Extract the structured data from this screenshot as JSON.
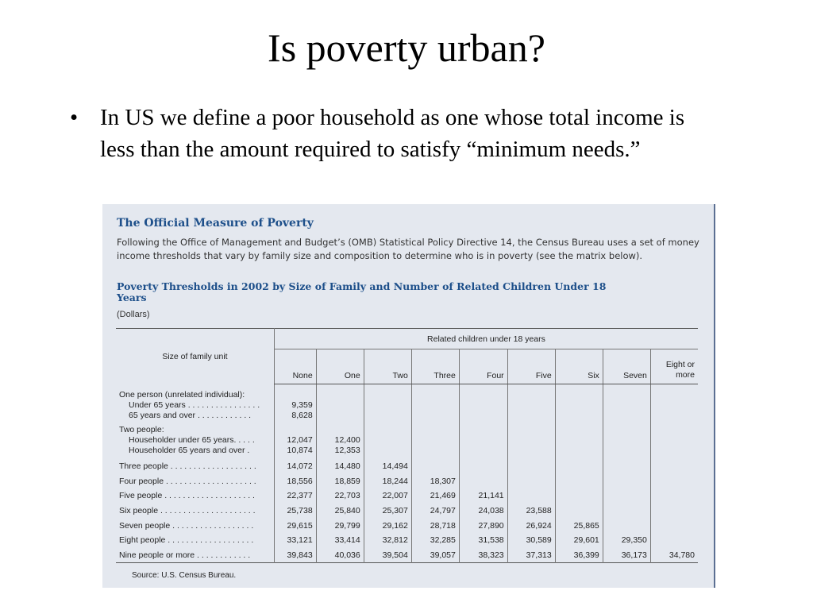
{
  "slide": {
    "title": "Is poverty urban?",
    "bullet_symbol": "•",
    "bullet_text": "In US we define a poor household as one whose total income is less than the amount  required to satisfy “minimum needs.”"
  },
  "panel": {
    "title": "The Official Measure of Poverty",
    "description": "Following the Office of Management and Budget’s (OMB) Statistical Policy Directive 14, the Census Bureau uses a set of money income thresholds that vary by family size and composition to determine who is in poverty (see the matrix below).",
    "table_title": "Poverty Thresholds in 2002 by Size of Family and Number of Related Children Under 18 Years",
    "units": "(Dollars)",
    "size_header": "Size of family unit",
    "group_header": "Related children under 18 years",
    "columns": [
      "None",
      "One",
      "Two",
      "Three",
      "Four",
      "Five",
      "Six",
      "Seven",
      "Eight or more"
    ],
    "rows": [
      {
        "label": "One person (unrelated individual):",
        "values": []
      },
      {
        "label": "Under 65 years . . . . . . . . . . . . . . . .",
        "values": [
          "9,359"
        ]
      },
      {
        "label": "65 years and over  . . . . . . . . . . . .",
        "values": [
          "8,628"
        ]
      },
      {
        "label": "Two people:",
        "values": []
      },
      {
        "label": "Householder under 65 years. . . . .",
        "values": [
          "12,047",
          "12,400"
        ]
      },
      {
        "label": "Householder 65 years and over  .",
        "values": [
          "10,874",
          "12,353"
        ]
      },
      {
        "label": "Three people . . . . . . . . . . . . . . . . . . .",
        "values": [
          "14,072",
          "14,480",
          "14,494"
        ]
      },
      {
        "label": "Four people . . . . . . . . . . . . . . . . . . . .",
        "values": [
          "18,556",
          "18,859",
          "18,244",
          "18,307"
        ]
      },
      {
        "label": "Five people  . . . . . . . . . . . . . . . . . . . .",
        "values": [
          "22,377",
          "22,703",
          "22,007",
          "21,469",
          "21,141"
        ]
      },
      {
        "label": "Six people  . . . . . . . . . . . . . . . . . . . . .",
        "values": [
          "25,738",
          "25,840",
          "25,307",
          "24,797",
          "24,038",
          "23,588"
        ]
      },
      {
        "label": "Seven people  . . . . . . . . . . . . . . . . . .",
        "values": [
          "29,615",
          "29,799",
          "29,162",
          "28,718",
          "27,890",
          "26,924",
          "25,865"
        ]
      },
      {
        "label": "Eight people  . . . . . . . . . . . . . . . . . . .",
        "values": [
          "33,121",
          "33,414",
          "32,812",
          "32,285",
          "31,538",
          "30,589",
          "29,601",
          "29,350"
        ]
      },
      {
        "label": "Nine people or more  . . . . . . . . . . . .",
        "values": [
          "39,843",
          "40,036",
          "39,504",
          "39,057",
          "38,323",
          "37,313",
          "36,399",
          "36,173",
          "34,780"
        ]
      }
    ],
    "source": "Source: U.S. Census Bureau."
  }
}
